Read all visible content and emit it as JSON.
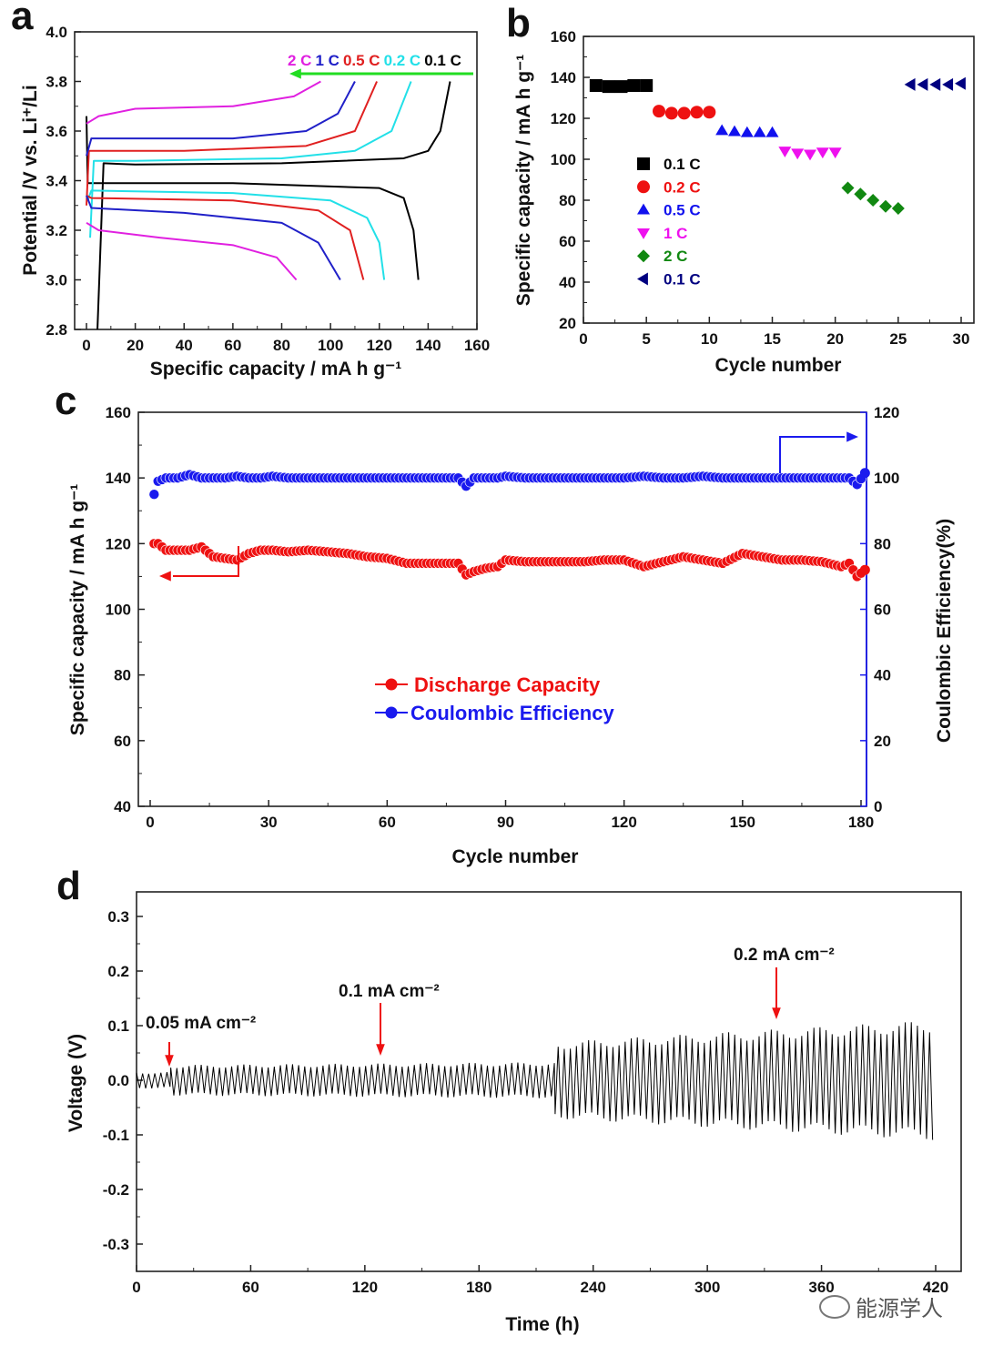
{
  "chart_data": [
    {
      "panel": "a",
      "type": "line",
      "xlabel": "Specific capacity / mA h g⁻¹",
      "ylabel": "Potential /V vs. Li⁺/Li",
      "xlim": [
        0,
        160
      ],
      "ylim": [
        2.8,
        4.0
      ],
      "xticks": [
        "0",
        "20",
        "40",
        "60",
        "80",
        "100",
        "120",
        "140",
        "160"
      ],
      "yticks": [
        "2.8",
        "3.0",
        "3.2",
        "3.4",
        "3.6",
        "3.8",
        "4.0"
      ],
      "legend_arrow_color": "#22dd22",
      "series": [
        {
          "name": "0.1 C",
          "color": "#000000",
          "charge": [
            [
              4.5,
              2.8
            ],
            [
              7,
              3.47
            ],
            [
              20,
              3.465
            ],
            [
              80,
              3.47
            ],
            [
              130,
              3.49
            ],
            [
              140,
              3.52
            ],
            [
              145,
              3.6
            ],
            [
              149,
              3.8
            ]
          ],
          "discharge": [
            [
              0,
              3.66
            ],
            [
              0.5,
              3.39
            ],
            [
              10,
              3.39
            ],
            [
              60,
              3.39
            ],
            [
              120,
              3.37
            ],
            [
              130,
              3.33
            ],
            [
              134,
              3.2
            ],
            [
              136,
              3.0
            ]
          ]
        },
        {
          "name": "0.2 C",
          "color": "#22e0e8",
          "charge": [
            [
              1.5,
              3.17
            ],
            [
              3,
              3.48
            ],
            [
              20,
              3.48
            ],
            [
              80,
              3.49
            ],
            [
              110,
              3.52
            ],
            [
              125,
              3.6
            ],
            [
              133,
              3.8
            ]
          ],
          "discharge": [
            [
              0.5,
              3.32
            ],
            [
              2,
              3.36
            ],
            [
              60,
              3.35
            ],
            [
              100,
              3.32
            ],
            [
              115,
              3.25
            ],
            [
              120,
              3.15
            ],
            [
              122,
              3.0
            ]
          ]
        },
        {
          "name": "0.5 C",
          "color": "#e02020",
          "charge": [
            [
              0,
              3.3
            ],
            [
              1,
              3.52
            ],
            [
              40,
              3.52
            ],
            [
              90,
              3.54
            ],
            [
              110,
              3.6
            ],
            [
              119,
              3.8
            ]
          ],
          "discharge": [
            [
              0,
              3.34
            ],
            [
              2,
              3.33
            ],
            [
              60,
              3.32
            ],
            [
              95,
              3.28
            ],
            [
              108,
              3.2
            ],
            [
              113.5,
              3.0
            ]
          ]
        },
        {
          "name": "1 C",
          "color": "#2020c8",
          "charge": [
            [
              0,
              3.5
            ],
            [
              2,
              3.57
            ],
            [
              60,
              3.57
            ],
            [
              90,
              3.6
            ],
            [
              103,
              3.67
            ],
            [
              110,
              3.8
            ]
          ],
          "discharge": [
            [
              0,
              3.34
            ],
            [
              2,
              3.29
            ],
            [
              40,
              3.27
            ],
            [
              80,
              3.23
            ],
            [
              95,
              3.15
            ],
            [
              104,
              3.0
            ]
          ]
        },
        {
          "name": "2 C",
          "color": "#e020e0",
          "charge": [
            [
              0,
              3.63
            ],
            [
              5,
              3.66
            ],
            [
              20,
              3.69
            ],
            [
              60,
              3.7
            ],
            [
              85,
              3.74
            ],
            [
              96,
              3.8
            ]
          ],
          "discharge": [
            [
              0,
              3.23
            ],
            [
              5,
              3.2
            ],
            [
              30,
              3.17
            ],
            [
              60,
              3.14
            ],
            [
              78,
              3.09
            ],
            [
              86,
              3.0
            ]
          ]
        }
      ]
    },
    {
      "panel": "b",
      "type": "scatter",
      "xlabel": "Cycle number",
      "ylabel": "Specific capacity / mA h g⁻¹",
      "xlim": [
        0,
        31
      ],
      "ylim": [
        20,
        160
      ],
      "xticks": [
        "0",
        "5",
        "10",
        "15",
        "20",
        "25",
        "30"
      ],
      "yticks": [
        "20",
        "40",
        "60",
        "80",
        "100",
        "120",
        "140",
        "160"
      ],
      "legend_position": "center-left",
      "series": [
        {
          "name": "0.1 C",
          "color": "#000000",
          "marker": "square",
          "x": [
            1,
            2,
            3,
            4,
            5
          ],
          "y": [
            136,
            135.5,
            135.5,
            136,
            136
          ]
        },
        {
          "name": "0.2 C",
          "color": "#ee1111",
          "marker": "circle",
          "x": [
            6,
            7,
            8,
            9,
            10
          ],
          "y": [
            123.5,
            122.5,
            122.5,
            123,
            123
          ]
        },
        {
          "name": "0.5 C",
          "color": "#1111ee",
          "marker": "triangle-up",
          "x": [
            11,
            12,
            13,
            14,
            15
          ],
          "y": [
            114,
            113.5,
            113,
            113,
            113
          ]
        },
        {
          "name": "1 C",
          "color": "#ee11ee",
          "marker": "triangle-down",
          "x": [
            16,
            17,
            18,
            19,
            20
          ],
          "y": [
            104,
            103,
            102.5,
            103.5,
            103.5
          ]
        },
        {
          "name": "2 C",
          "color": "#118811",
          "marker": "diamond",
          "x": [
            21,
            22,
            23,
            24,
            25
          ],
          "y": [
            86,
            83,
            80,
            77,
            76
          ]
        },
        {
          "name": "0.1 C",
          "color": "#000080",
          "marker": "triangle-left",
          "x": [
            26,
            27,
            28,
            29,
            30
          ],
          "y": [
            136.5,
            136.5,
            136.5,
            136.5,
            137
          ]
        }
      ]
    },
    {
      "panel": "c",
      "type": "scatter",
      "xlabel": "Cycle number",
      "ylabel": "Specific capacity / mA h g⁻¹",
      "y2label": "Coulombic Efficiency(%)",
      "xlim": [
        -2,
        183
      ],
      "ylim": [
        40,
        160
      ],
      "y2lim": [
        0,
        120
      ],
      "xticks": [
        "0",
        "30",
        "60",
        "90",
        "120",
        "150",
        "180"
      ],
      "yticks": [
        "40",
        "60",
        "80",
        "100",
        "120",
        "140",
        "160"
      ],
      "y2ticks": [
        "0",
        "20",
        "40",
        "60",
        "80",
        "100",
        "120"
      ],
      "legend_position": "center",
      "series": [
        {
          "name": "Discharge Capacity",
          "color": "#ee1111",
          "axis": "left",
          "x": [
            1,
            2,
            4,
            7,
            10,
            13,
            16,
            19,
            22,
            25,
            28,
            31,
            35,
            40,
            45,
            50,
            55,
            60,
            65,
            70,
            75,
            78,
            80,
            82,
            85,
            88,
            90,
            95,
            100,
            105,
            110,
            115,
            120,
            125,
            130,
            135,
            140,
            145,
            150,
            155,
            160,
            165,
            170,
            175,
            177,
            179,
            181
          ],
          "y": [
            120,
            120,
            118,
            118,
            118,
            119,
            116,
            115.5,
            115,
            117,
            118,
            118,
            117.5,
            118,
            117.5,
            117,
            116,
            115.5,
            114,
            114,
            114,
            114,
            110.5,
            111.5,
            112.5,
            113,
            115,
            114.5,
            114.5,
            114.5,
            114.5,
            115,
            115,
            113,
            114.5,
            116,
            115,
            114,
            117,
            116,
            115,
            115,
            114.5,
            113,
            114,
            110,
            112
          ]
        },
        {
          "name": "Coulombic Efficiency",
          "color": "#1a1aee",
          "axis": "right",
          "x": [
            1,
            2,
            4,
            7,
            10,
            13,
            16,
            19,
            22,
            25,
            28,
            31,
            35,
            40,
            45,
            50,
            55,
            60,
            65,
            70,
            75,
            78,
            80,
            82,
            85,
            88,
            90,
            95,
            100,
            105,
            110,
            115,
            120,
            125,
            130,
            135,
            140,
            145,
            150,
            155,
            160,
            165,
            170,
            175,
            177,
            179,
            181
          ],
          "y": [
            95,
            99,
            100,
            100,
            101,
            100,
            100,
            100,
            100.5,
            100,
            100,
            100.5,
            100,
            100,
            100,
            100,
            100,
            100,
            100,
            100,
            100,
            100,
            97.5,
            100,
            100,
            100,
            100.5,
            100,
            100,
            100,
            100,
            100,
            100,
            100.5,
            100,
            100,
            100.5,
            100,
            100,
            100,
            100,
            100,
            100,
            100,
            100,
            98,
            101.5
          ]
        }
      ]
    },
    {
      "panel": "d",
      "type": "line",
      "xlabel": "Time (h)",
      "ylabel": "Voltage (V)",
      "xlim": [
        0,
        420
      ],
      "ylim": [
        -0.35,
        0.345
      ],
      "xticks": [
        "0",
        "60",
        "120",
        "180",
        "240",
        "300",
        "360",
        "420"
      ],
      "yticks": [
        "-0.3",
        "-0.2",
        "-0.1",
        "0.0",
        "0.1",
        "0.2",
        "0.3"
      ],
      "series": [
        {
          "color": "#000000",
          "segments": [
            {
              "t_range": [
                0,
                18
              ],
              "amplitude_V": [
                0.015,
                0.015
              ]
            },
            {
              "t_range": [
                18,
                220
              ],
              "amplitude_V": [
                0.028,
                0.033
              ]
            },
            {
              "t_range": [
                220,
                420
              ],
              "amplitude_V": [
                0.07,
                0.11
              ]
            }
          ]
        }
      ],
      "annotations": [
        {
          "text": "0.05 mA cm⁻²",
          "x": 17,
          "color": "#ee1111"
        },
        {
          "text": "0.1 mA cm⁻²",
          "x": 128,
          "color": "#ee1111"
        },
        {
          "text": "0.2 mA cm⁻²",
          "x": 338,
          "color": "#ee1111"
        }
      ]
    }
  ],
  "panels": {
    "a": "a",
    "b": "b",
    "c": "c",
    "d": "d"
  },
  "watermark": "能源学人"
}
